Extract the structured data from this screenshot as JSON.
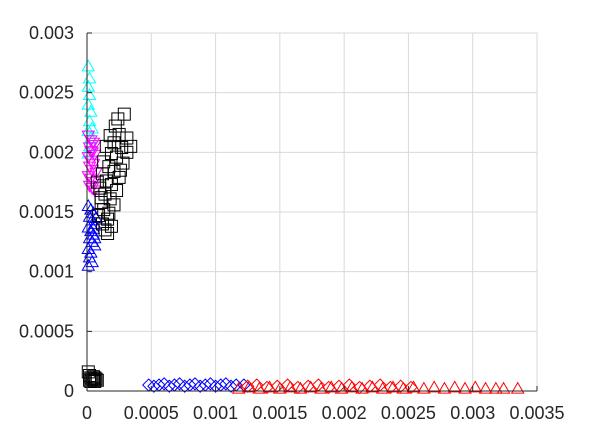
{
  "chart_data": {
    "type": "scatter",
    "title": "",
    "xlabel": "",
    "ylabel": "",
    "xlim": [
      0,
      0.0035
    ],
    "ylim": [
      0,
      0.003
    ],
    "grid": true,
    "legend": "none",
    "x_ticks": [
      "0",
      "0.0005",
      "0.001",
      "0.0015",
      "0.002",
      "0.0025",
      "0.003",
      "0.0035"
    ],
    "x_tick_values": [
      0,
      0.0005,
      0.001,
      0.0015,
      0.002,
      0.0025,
      0.003,
      0.0035
    ],
    "y_ticks": [
      "0",
      "0.0005",
      "0.001",
      "0.0015",
      "0.002",
      "0.0025",
      "0.003"
    ],
    "y_tick_values": [
      0,
      0.0005,
      0.001,
      0.0015,
      0.002,
      0.0025,
      0.003
    ],
    "series": [
      {
        "color": "#00ffff",
        "marker": "triangle-up",
        "points": [
          [
            1e-05,
            0.00272
          ],
          [
            2e-05,
            0.00262
          ],
          [
            1e-05,
            0.00255
          ],
          [
            2e-05,
            0.00248
          ],
          [
            1e-05,
            0.0024
          ],
          [
            3e-05,
            0.00234
          ],
          [
            2e-05,
            0.00226
          ],
          [
            1e-05,
            0.00218
          ],
          [
            3e-05,
            0.00212
          ],
          [
            2e-05,
            0.00205
          ],
          [
            4e-05,
            0.0022
          ],
          [
            1e-05,
            0.00199
          ]
        ]
      },
      {
        "color": "#ff00ff",
        "marker": "triangle-down",
        "points": [
          [
            1e-05,
            0.00214
          ],
          [
            3e-05,
            0.0021
          ],
          [
            5e-05,
            0.00208
          ],
          [
            2e-05,
            0.00204
          ],
          [
            4e-05,
            0.002
          ],
          [
            6e-05,
            0.00198
          ],
          [
            1e-05,
            0.00196
          ],
          [
            3e-05,
            0.00193
          ],
          [
            5e-05,
            0.0019
          ],
          [
            2e-05,
            0.00188
          ],
          [
            4e-05,
            0.00185
          ],
          [
            7e-05,
            0.00183
          ],
          [
            1e-05,
            0.0018
          ],
          [
            3e-05,
            0.00178
          ],
          [
            5e-05,
            0.00175
          ],
          [
            2e-05,
            0.00172
          ],
          [
            4e-05,
            0.0017
          ],
          [
            6e-05,
            0.00168
          ],
          [
            3e-05,
            0.00201
          ],
          [
            6e-05,
            0.00206
          ]
        ]
      },
      {
        "color": "#0000ff",
        "marker": "triangle-up",
        "points": [
          [
            1e-05,
            0.00155
          ],
          [
            3e-05,
            0.00152
          ],
          [
            5e-05,
            0.00149
          ],
          [
            2e-05,
            0.00146
          ],
          [
            4e-05,
            0.00143
          ],
          [
            6e-05,
            0.0014
          ],
          [
            1e-05,
            0.00137
          ],
          [
            3e-05,
            0.00134
          ],
          [
            5e-05,
            0.00131
          ],
          [
            2e-05,
            0.00128
          ],
          [
            4e-05,
            0.00125
          ],
          [
            6e-05,
            0.00122
          ],
          [
            1e-05,
            0.00119
          ],
          [
            3e-05,
            0.00116
          ],
          [
            2e-05,
            0.00112
          ],
          [
            4e-05,
            0.00108
          ],
          [
            1e-05,
            0.00105
          ],
          [
            5e-05,
            0.00136
          ],
          [
            7e-05,
            0.00145
          ],
          [
            6e-05,
            0.00128
          ]
        ]
      },
      {
        "color": "#000000",
        "marker": "square",
        "points": [
          [
            0.00024,
            0.00228
          ],
          [
            0.00029,
            0.00232
          ],
          [
            0.00022,
            0.00222
          ],
          [
            0.00018,
            0.00214
          ],
          [
            0.00025,
            0.00215
          ],
          [
            0.00031,
            0.00212
          ],
          [
            0.00021,
            0.00208
          ],
          [
            0.00015,
            0.00205
          ],
          [
            0.00027,
            0.00204
          ],
          [
            0.00019,
            0.00199
          ],
          [
            0.00023,
            0.00196
          ],
          [
            0.00013,
            0.00192
          ],
          [
            0.00028,
            0.00191
          ],
          [
            0.00017,
            0.00188
          ],
          [
            0.00021,
            0.00184
          ],
          [
            0.00012,
            0.00182
          ],
          [
            0.00025,
            0.00179
          ],
          [
            0.00015,
            0.00176
          ],
          [
            0.00019,
            0.00173
          ],
          [
            0.0001,
            0.0017
          ],
          [
            0.00023,
            0.00168
          ],
          [
            0.00014,
            0.00165
          ],
          [
            0.00018,
            0.00161
          ],
          [
            0.00011,
            0.00158
          ],
          [
            0.00021,
            0.00156
          ],
          [
            0.00013,
            0.00152
          ],
          [
            0.00017,
            0.00149
          ],
          [
            9e-05,
            0.00147
          ],
          [
            0.00016,
            0.00144
          ],
          [
            0.00012,
            0.0014
          ],
          [
            0.00019,
            0.00138
          ],
          [
            0.00014,
            0.00135
          ],
          [
            0.00016,
            0.00132
          ],
          [
            0.00011,
            0.00162
          ],
          [
            0.00026,
            0.00185
          ],
          [
            0.00031,
            0.002
          ],
          [
            0.00034,
            0.00205
          ],
          [
            8e-05,
            0.00175
          ]
        ]
      },
      {
        "color": "#000000",
        "marker": "square",
        "points": [
          [
            1e-05,
            0.00016
          ],
          [
            2e-05,
            0.00013
          ],
          [
            3e-05,
            0.00011
          ],
          [
            4e-05,
            0.0001
          ],
          [
            5e-05,
            9e-05
          ],
          [
            6e-05,
            8e-05
          ],
          [
            7e-05,
            0.0001
          ],
          [
            3e-05,
            8e-05
          ],
          [
            5e-05,
            0.00012
          ],
          [
            8e-05,
            9e-05
          ],
          [
            2e-05,
            9e-05
          ],
          [
            6e-05,
            0.00011
          ]
        ]
      },
      {
        "color": "#0000ff",
        "marker": "diamond",
        "points": [
          [
            0.00048,
            5e-05
          ],
          [
            0.00052,
            4e-05
          ],
          [
            0.00056,
            5e-05
          ],
          [
            0.0006,
            6e-05
          ],
          [
            0.00064,
            4e-05
          ],
          [
            0.00068,
            5e-05
          ],
          [
            0.00072,
            6e-05
          ],
          [
            0.00076,
            4e-05
          ],
          [
            0.0008,
            5e-05
          ],
          [
            0.00084,
            6e-05
          ],
          [
            0.00088,
            4e-05
          ],
          [
            0.00092,
            5e-05
          ],
          [
            0.00096,
            6e-05
          ],
          [
            0.001,
            4e-05
          ],
          [
            0.00104,
            5e-05
          ],
          [
            0.00108,
            6e-05
          ],
          [
            0.00112,
            4e-05
          ],
          [
            0.00116,
            5e-05
          ],
          [
            0.00122,
            5e-05
          ]
        ]
      },
      {
        "color": "#ff0000",
        "marker": "diamond",
        "points": [
          [
            0.00125,
            4e-05
          ],
          [
            0.00132,
            5e-05
          ],
          [
            0.0014,
            3e-05
          ],
          [
            0.00148,
            4e-05
          ],
          [
            0.00156,
            5e-05
          ],
          [
            0.00164,
            3e-05
          ],
          [
            0.00172,
            4e-05
          ],
          [
            0.0018,
            5e-05
          ],
          [
            0.00188,
            3e-05
          ],
          [
            0.00196,
            4e-05
          ],
          [
            0.00204,
            5e-05
          ],
          [
            0.00212,
            3e-05
          ],
          [
            0.0022,
            4e-05
          ],
          [
            0.00228,
            5e-05
          ],
          [
            0.00236,
            3e-05
          ],
          [
            0.00244,
            4e-05
          ],
          [
            0.00252,
            3e-05
          ]
        ]
      },
      {
        "color": "#ff0000",
        "marker": "triangle-up",
        "points": [
          [
            0.00118,
            2e-05
          ],
          [
            0.00126,
            3e-05
          ],
          [
            0.00134,
            2e-05
          ],
          [
            0.00142,
            3e-05
          ],
          [
            0.0015,
            2e-05
          ],
          [
            0.00158,
            3e-05
          ],
          [
            0.00166,
            2e-05
          ],
          [
            0.00174,
            3e-05
          ],
          [
            0.00182,
            2e-05
          ],
          [
            0.0019,
            3e-05
          ],
          [
            0.00198,
            2e-05
          ],
          [
            0.00206,
            3e-05
          ],
          [
            0.00214,
            2e-05
          ],
          [
            0.00222,
            3e-05
          ],
          [
            0.0023,
            2e-05
          ],
          [
            0.00238,
            3e-05
          ],
          [
            0.00246,
            2e-05
          ],
          [
            0.00254,
            3e-05
          ],
          [
            0.00262,
            2e-05
          ],
          [
            0.0027,
            3e-05
          ],
          [
            0.00278,
            2e-05
          ],
          [
            0.00286,
            3e-05
          ],
          [
            0.00294,
            2e-05
          ],
          [
            0.00302,
            3e-05
          ],
          [
            0.0031,
            2e-05
          ],
          [
            0.00318,
            2e-05
          ],
          [
            0.00324,
            2e-05
          ],
          [
            0.00335,
            2e-05
          ]
        ]
      }
    ]
  }
}
